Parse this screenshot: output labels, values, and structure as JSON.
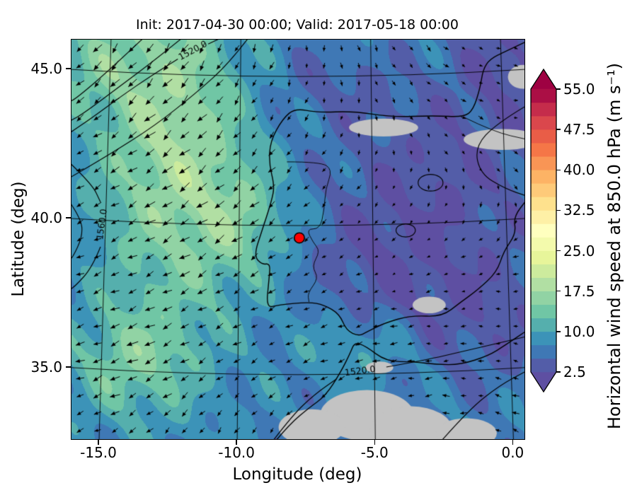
{
  "chart_data": {
    "type": "heatmap",
    "title": "Init: 2017-04-30 00:00; Valid: 2017-05-18 00:00",
    "xlabel": "Longitude (deg)",
    "ylabel": "Latitude (deg)",
    "xlim": [
      -16.0,
      0.4
    ],
    "ylim": [
      32.6,
      46.0
    ],
    "grid": true,
    "xticks": [
      {
        "label": "-15.0",
        "value": -15
      },
      {
        "label": "-10.0",
        "value": -10
      },
      {
        "label": "-5.0",
        "value": -5
      },
      {
        "label": "0.0",
        "value": 0
      }
    ],
    "yticks": [
      {
        "label": "45.0",
        "value": 45
      },
      {
        "label": "40.0",
        "value": 40
      },
      {
        "label": "35.0",
        "value": 35
      }
    ],
    "colorbar": {
      "label": "Horizontal wind speed at 850.0 hPa (m s⁻¹)",
      "ticks": [
        {
          "label": "55.0",
          "value": 55
        },
        {
          "label": "47.5",
          "value": 47.5
        },
        {
          "label": "40.0",
          "value": 40
        },
        {
          "label": "32.5",
          "value": 32.5
        },
        {
          "label": "25.0",
          "value": 25
        },
        {
          "label": "17.5",
          "value": 17.5
        },
        {
          "label": "10.0",
          "value": 10
        },
        {
          "label": "2.5",
          "value": 2.5
        }
      ],
      "levels": {
        "min": 2.5,
        "max": 55.0,
        "step": 2.5
      },
      "colormap": "Spectral_r",
      "under": "#5e4fa2",
      "over": "#9e0142",
      "colors": [
        "#535da8",
        "#3f78b5",
        "#3c93b8",
        "#55afad",
        "#70c6a5",
        "#91d3a4",
        "#b1dfa3",
        "#cdeb9d",
        "#e7f59a",
        "#f3faac",
        "#ffffbf",
        "#fef0a6",
        "#fee18d",
        "#feca79",
        "#fdb365",
        "#f99555",
        "#f57647",
        "#e95d47",
        "#da474c",
        "#c52c4b",
        "#ab0f45"
      ]
    },
    "marker": {
      "lon": -7.75,
      "lat": 39.35,
      "color": "#ff0000",
      "edge": "#000000"
    },
    "mask_color": "#c3c3c3",
    "wind": {
      "cols": 26,
      "rows": 23,
      "color": "#000000"
    },
    "contours": [
      {
        "label": "1520.0",
        "label_lon": -11.6,
        "label_lat": 45.62,
        "rot": -28,
        "segments": [
          [
            [
              -10.6,
              46.05
            ],
            [
              -11.05,
              45.85
            ]
          ],
          [
            [
              -12.15,
              45.35
            ],
            [
              -13.1,
              44.8
            ],
            [
              -14.2,
              44.1
            ],
            [
              -15.3,
              43.35
            ],
            [
              -16.1,
              42.85
            ]
          ]
        ]
      },
      {
        "label": null,
        "segments": [
          [
            [
              -12.0,
              46.05
            ],
            [
              -13.0,
              45.3
            ],
            [
              -14.3,
              44.4
            ],
            [
              -15.6,
              43.5
            ],
            [
              -16.1,
              43.25
            ]
          ]
        ]
      },
      {
        "label": null,
        "segments": [
          [
            [
              -13.4,
              46.05
            ],
            [
              -14.6,
              45.0
            ],
            [
              -15.8,
              44.05
            ],
            [
              -16.1,
              43.9
            ]
          ]
        ]
      },
      {
        "label": null,
        "segments": [
          [
            [
              -9.6,
              46.05
            ],
            [
              -10.3,
              45.2
            ],
            [
              -11.5,
              44.2
            ],
            [
              -13.0,
              43.1
            ],
            [
              -14.7,
              42.1
            ],
            [
              -16.1,
              41.35
            ]
          ]
        ]
      },
      {
        "label": "1560.0",
        "label_lon": -14.88,
        "label_lat": 39.8,
        "rot": -82,
        "segments": [
          [
            [
              -16.1,
              41.9
            ],
            [
              -15.25,
              41.15
            ],
            [
              -14.95,
              40.55
            ]
          ],
          [
            [
              -14.95,
              39.05
            ],
            [
              -15.25,
              38.35
            ],
            [
              -15.9,
              37.7
            ],
            [
              -16.1,
              37.6
            ]
          ]
        ]
      },
      {
        "label": null,
        "segments": [
          [
            [
              -16.1,
              40.6
            ],
            [
              -15.65,
              40.0
            ],
            [
              -15.6,
              39.4
            ],
            [
              -15.95,
              38.7
            ],
            [
              -16.1,
              38.6
            ]
          ]
        ]
      },
      {
        "label": "1520.0",
        "label_lon": -5.55,
        "label_lat": 34.87,
        "rot": -7,
        "segments": [
          [
            [
              -8.7,
              32.55
            ],
            [
              -8.0,
              33.4
            ],
            [
              -7.2,
              34.1
            ],
            [
              -6.4,
              34.62
            ]
          ],
          [
            [
              -4.6,
              35.02
            ],
            [
              -3.2,
              35.25
            ],
            [
              -1.8,
              35.55
            ],
            [
              -0.4,
              35.85
            ],
            [
              0.5,
              36.05
            ]
          ]
        ]
      },
      {
        "label": null,
        "segments": [
          [
            [
              -2.6,
              32.55
            ],
            [
              -1.6,
              33.6
            ],
            [
              -0.5,
              34.4
            ],
            [
              0.5,
              34.9
            ]
          ]
        ]
      },
      {
        "label": null,
        "segments": [
          [
            [
              0.5,
              43.8
            ],
            [
              -0.6,
              43.2
            ],
            [
              -1.4,
              42.4
            ],
            [
              -1.2,
              41.5
            ],
            [
              -0.3,
              41.0
            ],
            [
              0.5,
              40.75
            ]
          ]
        ]
      },
      {
        "label": null,
        "loop": {
          "lon": -3.0,
          "lat": 41.2,
          "rx": 0.45,
          "ry": 0.28
        }
      },
      {
        "label": null,
        "loop": {
          "lon": -3.9,
          "lat": 39.6,
          "rx": 0.35,
          "ry": 0.22
        }
      }
    ],
    "coastlines": [
      [
        [
          0.5,
          45.95
        ],
        [
          -0.3,
          45.6
        ],
        [
          -0.85,
          45.35
        ],
        [
          -1.1,
          45.0
        ],
        [
          -1.2,
          44.4
        ],
        [
          -1.45,
          43.65
        ],
        [
          -1.8,
          43.4
        ],
        [
          -2.9,
          43.45
        ],
        [
          -4.4,
          43.4
        ],
        [
          -5.8,
          43.6
        ],
        [
          -7.1,
          43.55
        ],
        [
          -7.9,
          43.7
        ],
        [
          -8.35,
          43.35
        ],
        [
          -8.8,
          42.6
        ],
        [
          -8.85,
          41.85
        ],
        [
          -8.65,
          41.1
        ],
        [
          -8.75,
          40.6
        ],
        [
          -9.1,
          39.6
        ],
        [
          -9.4,
          38.75
        ],
        [
          -9.1,
          38.45
        ],
        [
          -8.8,
          38.5
        ],
        [
          -8.85,
          37.95
        ],
        [
          -8.95,
          37.0
        ],
        [
          -8.5,
          37.1
        ],
        [
          -7.4,
          37.2
        ],
        [
          -6.85,
          37.1
        ],
        [
          -6.3,
          36.8
        ],
        [
          -6.05,
          36.25
        ],
        [
          -5.6,
          36.05
        ],
        [
          -5.3,
          36.2
        ],
        [
          -4.65,
          36.5
        ],
        [
          -3.7,
          36.75
        ],
        [
          -2.6,
          36.7
        ],
        [
          -1.9,
          37.2
        ],
        [
          -1.3,
          37.6
        ],
        [
          -0.6,
          38.2
        ],
        [
          -0.35,
          38.9
        ],
        [
          0.1,
          39.5
        ],
        [
          0.0,
          40.05
        ],
        [
          0.5,
          40.65
        ]
      ],
      [
        [
          -8.6,
          32.55
        ],
        [
          -8.1,
          33.1
        ],
        [
          -7.4,
          33.65
        ],
        [
          -6.8,
          34.05
        ],
        [
          -6.25,
          34.85
        ],
        [
          -5.9,
          35.5
        ],
        [
          -5.75,
          35.85
        ],
        [
          -5.35,
          35.72
        ],
        [
          -4.6,
          35.2
        ],
        [
          -3.6,
          35.2
        ],
        [
          -2.8,
          35.1
        ],
        [
          -1.9,
          35.1
        ],
        [
          -0.9,
          35.4
        ],
        [
          -0.3,
          35.75
        ],
        [
          0.5,
          36.25
        ]
      ]
    ],
    "borders": [
      [
        [
          -8.2,
          41.9
        ],
        [
          -7.0,
          41.9
        ],
        [
          -6.55,
          41.65
        ],
        [
          -6.8,
          41.0
        ],
        [
          -6.85,
          40.3
        ],
        [
          -7.0,
          39.65
        ],
        [
          -7.5,
          39.65
        ],
        [
          -7.25,
          39.2
        ],
        [
          -7.0,
          38.9
        ],
        [
          -7.3,
          38.4
        ],
        [
          -7.05,
          38.0
        ],
        [
          -7.45,
          37.5
        ],
        [
          -7.4,
          37.2
        ]
      ],
      [
        [
          -1.8,
          43.4
        ],
        [
          -0.7,
          42.9
        ],
        [
          0.5,
          42.65
        ]
      ]
    ],
    "field": {
      "base": 7.5,
      "ripple": 1.7,
      "ripple2": 1.35,
      "bumps": [
        {
          "lon": -12.3,
          "lat": 42.5,
          "sx": 2.7,
          "sy": 5.6,
          "amp": 10
        },
        {
          "lon": -13.8,
          "lat": 35.2,
          "sx": 2.3,
          "sy": 1.9,
          "amp": 6.5
        },
        {
          "lon": -9.8,
          "lat": 39.8,
          "sx": 1.9,
          "sy": 2.1,
          "amp": 5
        },
        {
          "lon": -15.3,
          "lat": 45.2,
          "sx": 2.2,
          "sy": 2.0,
          "amp": 4.5
        },
        {
          "lon": -5.5,
          "lat": 35.7,
          "sx": 2.1,
          "sy": 1.1,
          "amp": 3.2
        },
        {
          "lon": -2.5,
          "lat": 41.5,
          "sx": 4.2,
          "sy": 3.1,
          "amp": -4.6
        },
        {
          "lon": -0.8,
          "lat": 36.6,
          "sx": 3.3,
          "sy": 2.4,
          "amp": -4.2
        },
        {
          "lon": -5.0,
          "lat": 38.4,
          "sx": 2.9,
          "sy": 2.2,
          "amp": -3.6
        },
        {
          "lon": 0.3,
          "lat": 45.4,
          "sx": 2.5,
          "sy": 2.1,
          "amp": -4.8
        },
        {
          "lon": -6.8,
          "lat": 44.6,
          "sx": 2.4,
          "sy": 1.6,
          "amp": -2.6
        }
      ],
      "flow": [
        {
          "lon": -24,
          "lat": 50,
          "sx": 16,
          "sy": 12,
          "amp": 1.0
        },
        {
          "lon": 0.5,
          "lat": 49,
          "sx": 5,
          "sy": 4,
          "amp": -0.8
        },
        {
          "lon": -2.5,
          "lat": 31.5,
          "sx": 6,
          "sy": 3.5,
          "amp": -0.75
        }
      ],
      "mask_blobs": [
        {
          "lon": -4.7,
          "lat": 43.05,
          "rx": 1.25,
          "ry": 0.3
        },
        {
          "lon": -0.4,
          "lat": 42.65,
          "rx": 1.4,
          "ry": 0.35
        },
        {
          "lon": 0.35,
          "lat": 44.75,
          "rx": 0.55,
          "ry": 0.4
        },
        {
          "lon": -3.05,
          "lat": 37.1,
          "rx": 0.6,
          "ry": 0.28
        },
        {
          "lon": -4.85,
          "lat": 35.0,
          "rx": 0.5,
          "ry": 0.2
        },
        {
          "lon": -5.3,
          "lat": 33.4,
          "rx": 1.7,
          "ry": 0.85
        },
        {
          "lon": -3.7,
          "lat": 32.9,
          "rx": 1.5,
          "ry": 0.8
        },
        {
          "lon": -7.3,
          "lat": 33.0,
          "rx": 1.2,
          "ry": 0.6
        },
        {
          "lon": -1.7,
          "lat": 32.8,
          "rx": 1.1,
          "ry": 0.5
        }
      ]
    }
  }
}
